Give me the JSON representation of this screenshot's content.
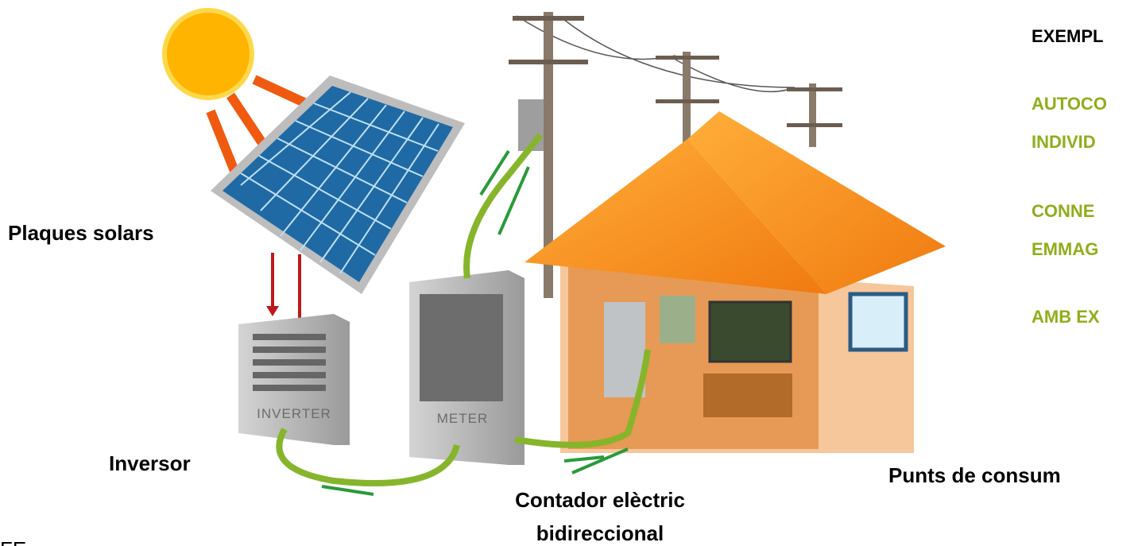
{
  "diagram": {
    "side_title": "EXEMPL",
    "side_items": [
      "AUTOCO",
      "INDIVID",
      "CONNE",
      "EMMAG",
      "AMB EX"
    ],
    "labels": {
      "panels": "Plaques solars",
      "inverter": "Inversor",
      "meter_line1": "Contador elèctric",
      "meter_line2": "bidireccional",
      "consumption": "Punts de consum",
      "corner": "FE"
    },
    "device_labels": {
      "inverter": "INVERTER",
      "meter": "METER"
    }
  }
}
